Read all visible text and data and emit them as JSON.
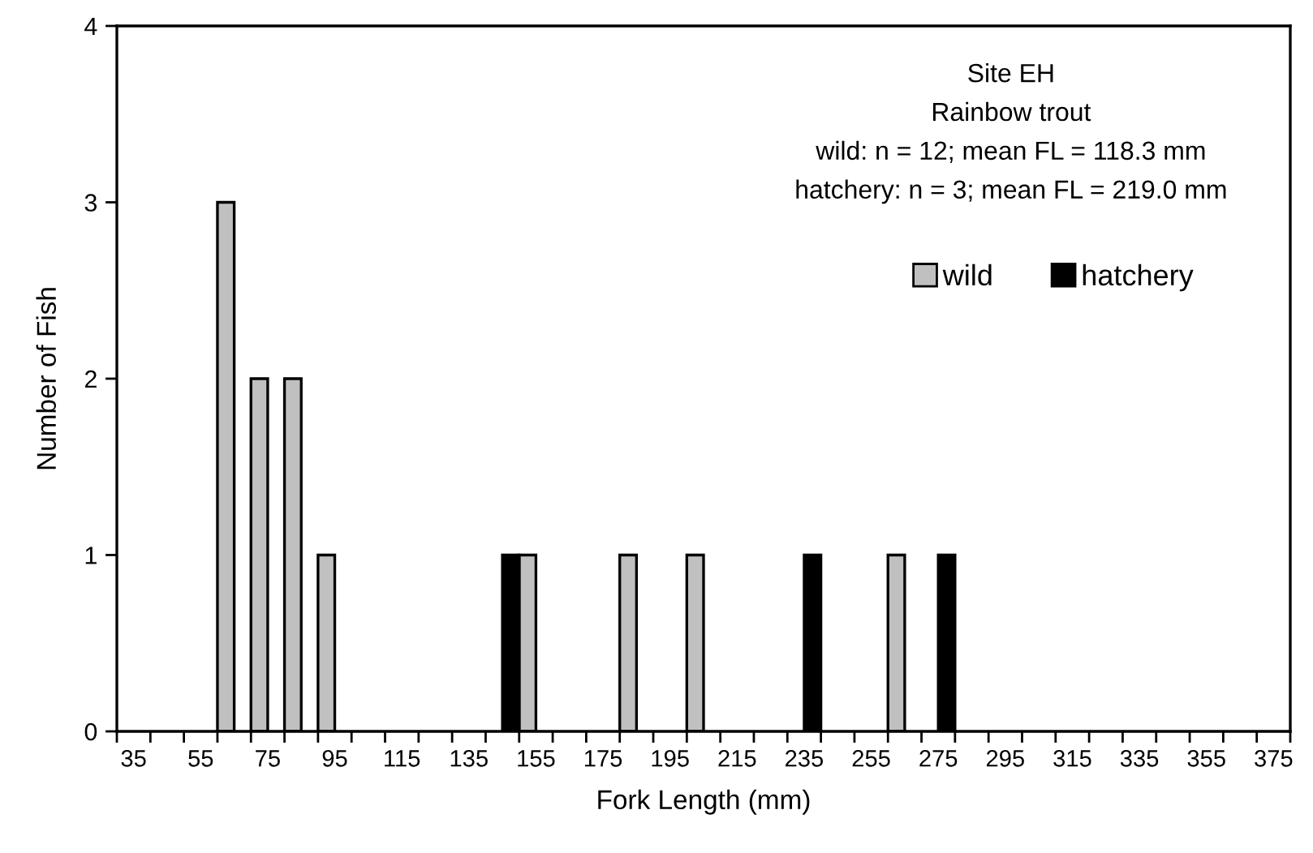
{
  "chart_data": {
    "type": "bar",
    "xlabel": "Fork Length (mm)",
    "ylabel": "Number of Fish",
    "annotations": [
      "Site EH",
      "Rainbow trout",
      "wild: n = 12; mean FL = 118.3 mm",
      "hatchery: n = 3; mean FL = 219.0 mm"
    ],
    "categories": [
      "35",
      null,
      "55",
      null,
      "75",
      null,
      "95",
      null,
      "115",
      null,
      "135",
      null,
      "155",
      null,
      "175",
      null,
      "195",
      null,
      "215",
      null,
      "235",
      null,
      "255",
      null,
      "275",
      null,
      "295",
      null,
      "315",
      null,
      "335",
      null,
      "355",
      null,
      "375"
    ],
    "series": [
      {
        "name": "wild",
        "color": "#c0c0c0",
        "values": [
          0,
          0,
          0,
          3,
          2,
          2,
          1,
          0,
          0,
          0,
          0,
          0,
          1,
          0,
          0,
          1,
          0,
          1,
          0,
          0,
          0,
          0,
          0,
          1,
          0,
          0,
          0,
          0,
          0,
          0,
          0,
          0,
          0,
          0,
          0
        ]
      },
      {
        "name": "hatchery",
        "color": "#000000",
        "values": [
          0,
          0,
          0,
          0,
          0,
          0,
          0,
          0,
          0,
          0,
          0,
          1,
          0,
          0,
          0,
          0,
          0,
          0,
          0,
          0,
          1,
          0,
          0,
          0,
          1,
          0,
          0,
          0,
          0,
          0,
          0,
          0,
          0,
          0,
          0
        ]
      }
    ],
    "ylim": [
      0,
      4
    ],
    "yticks": [
      0,
      1,
      2,
      3,
      4
    ],
    "grid": false,
    "legend": "top right"
  }
}
